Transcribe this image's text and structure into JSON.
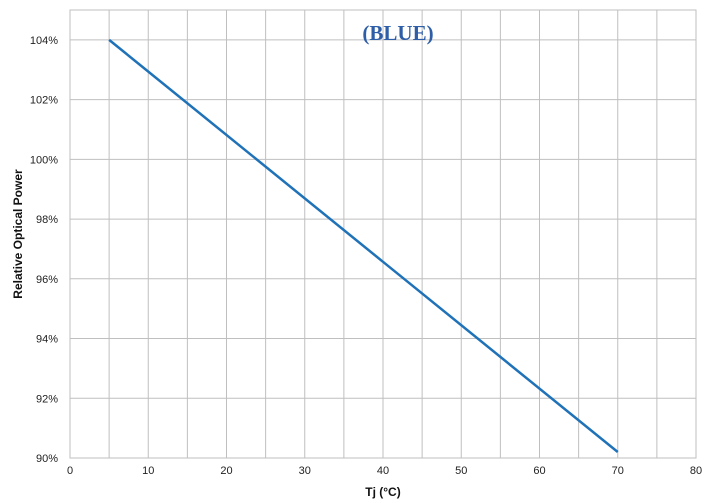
{
  "chart_data": {
    "type": "line",
    "xlabel": "Tj (°C)",
    "ylabel": "Relative Optical Power",
    "xlim": [
      0,
      80
    ],
    "ylim": [
      90,
      105
    ],
    "x_ticks": [
      0,
      10,
      20,
      30,
      40,
      50,
      60,
      70,
      80
    ],
    "x_tick_labels": [
      "0",
      "10",
      "20",
      "30",
      "40",
      "50",
      "60",
      "70",
      "80"
    ],
    "y_ticks": [
      90,
      92,
      94,
      96,
      98,
      100,
      102,
      104
    ],
    "y_tick_labels": [
      "90%",
      "92%",
      "94%",
      "96%",
      "98%",
      "100%",
      "102%",
      "104%"
    ],
    "grid": true,
    "annotation": "(BLUE)",
    "series": [
      {
        "color": "#1f72b8",
        "x": [
          5,
          70
        ],
        "y": [
          104.0,
          90.2
        ]
      }
    ],
    "colors": {
      "line": "#1f72b8",
      "annotation": "#2e5ea8",
      "grid": "#bfbfbf"
    }
  }
}
